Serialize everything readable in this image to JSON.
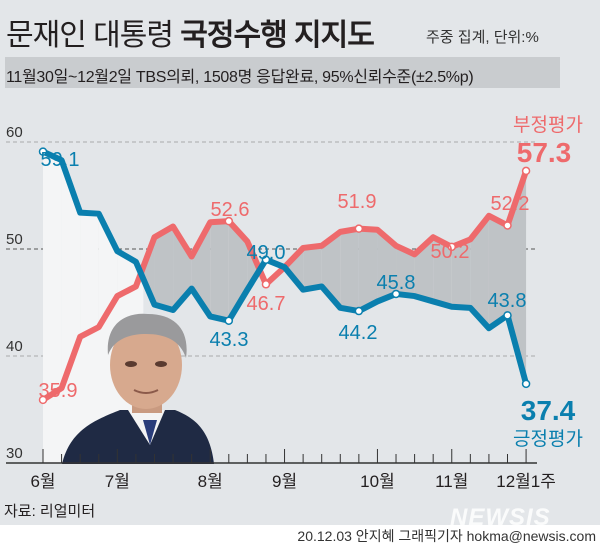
{
  "header": {
    "title_normal": "문재인 대통령 ",
    "title_bold": "국정수행 지지도",
    "unit_note": "주중 집계, 단위:%",
    "survey_info": "11월30일~12월2일 TBS의뢰, 1508명 응답완료, 95%신뢰수준(±2.5%p)"
  },
  "footer": {
    "source": "자료: 리얼미터",
    "credit": "20.12.03 안지혜 그래픽기자 hokma@newsis.com",
    "logo": "NEWSIS"
  },
  "colors": {
    "negative": "#ee6a6c",
    "positive": "#0a7fae",
    "gap_fill": "#bfc3c6",
    "background": "#e3e6e9"
  },
  "chart_data": {
    "type": "line",
    "title": "문재인 대통령 국정수행 지지도",
    "ylim": [
      30,
      60
    ],
    "yticks": [
      "30",
      "40",
      "50",
      "60"
    ],
    "grid": true,
    "x_tick_labels": [
      {
        "label": "6월",
        "index": 0
      },
      {
        "label": "7월",
        "index": 4
      },
      {
        "label": "8월",
        "index": 9
      },
      {
        "label": "9월",
        "index": 13
      },
      {
        "label": "10월",
        "index": 18
      },
      {
        "label": "11월",
        "index": 22
      },
      {
        "label": "12월1주",
        "index": 26
      }
    ],
    "series": [
      {
        "name": "부정평가",
        "color": "#ee6a6c",
        "values": [
          35.9,
          37.0,
          41.8,
          42.7,
          45.6,
          46.5,
          51.1,
          52.1,
          49.3,
          52.5,
          52.6,
          50.7,
          46.7,
          48.3,
          50.1,
          50.3,
          51.6,
          51.9,
          51.8,
          50.3,
          49.5,
          51.1,
          50.2,
          50.9,
          53.1,
          52.2,
          57.3
        ],
        "labeled": [
          {
            "index": 0,
            "text": "35.9"
          },
          {
            "index": 10,
            "text": "52.6"
          },
          {
            "index": 12,
            "text": "46.7"
          },
          {
            "index": 17,
            "text": "51.9"
          },
          {
            "index": 22,
            "text": "50.2"
          },
          {
            "index": 25,
            "text": "52.2"
          },
          {
            "index": 26,
            "text": "57.3"
          }
        ]
      },
      {
        "name": "긍정평가",
        "color": "#0a7fae",
        "values": [
          59.1,
          58.3,
          53.4,
          53.3,
          49.8,
          48.8,
          44.8,
          44.3,
          46.3,
          43.7,
          43.3,
          46.2,
          49.0,
          48.3,
          46.2,
          46.5,
          44.5,
          44.2,
          45.1,
          45.8,
          45.6,
          45.1,
          44.6,
          44.5,
          42.6,
          43.8,
          37.4
        ],
        "labeled": [
          {
            "index": 0,
            "text": "59.1"
          },
          {
            "index": 10,
            "text": "43.3"
          },
          {
            "index": 12,
            "text": "49.0"
          },
          {
            "index": 17,
            "text": "44.2"
          },
          {
            "index": 19,
            "text": "45.8"
          },
          {
            "index": 25,
            "text": "43.8"
          },
          {
            "index": 26,
            "text": "37.4"
          }
        ]
      }
    ]
  }
}
